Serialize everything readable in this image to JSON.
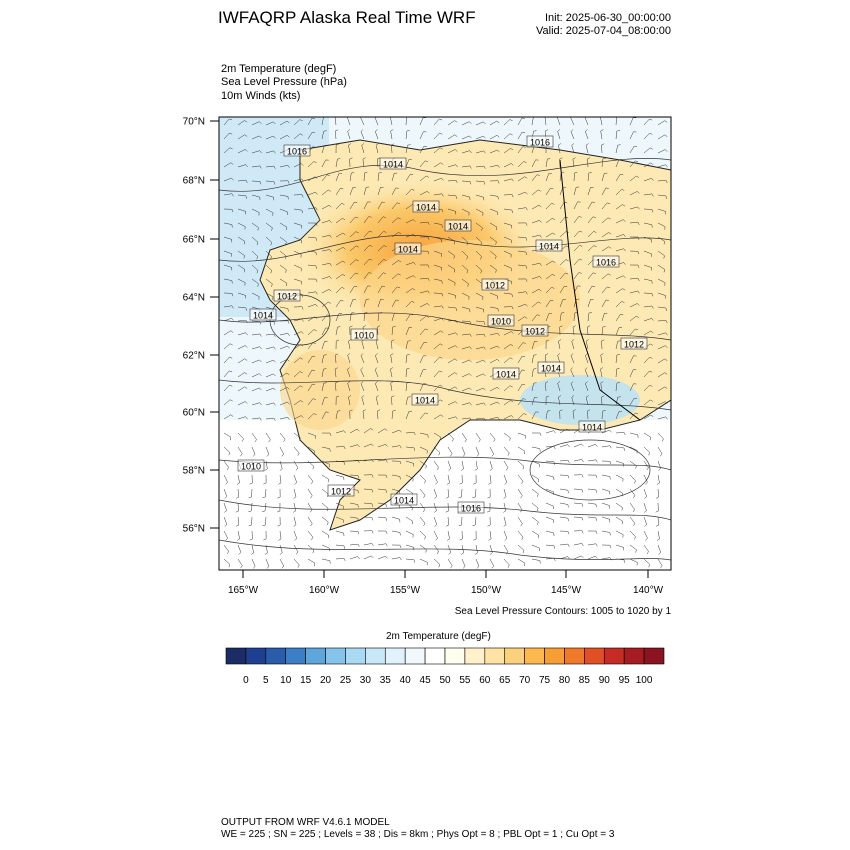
{
  "header": {
    "title": "IWFAQRP Alaska Real Time WRF",
    "init": "Init: 2025-06-30_00:00:00",
    "valid": "Valid: 2025-07-04_08:00:00"
  },
  "fields": [
    "2m Temperature   (degF)",
    "Sea Level Pressure   (hPa)",
    "10m Winds   (kts)"
  ],
  "lat_labels": [
    "70°N",
    "68°N",
    "66°N",
    "64°N",
    "62°N",
    "60°N",
    "58°N",
    "56°N"
  ],
  "lon_labels": [
    "165°W",
    "160°W",
    "155°W",
    "150°W",
    "145°W",
    "140°W"
  ],
  "isobar_labels": [
    "1016",
    "1016",
    "1014",
    "1014",
    "1014",
    "1014",
    "1014",
    "1016",
    "1012",
    "1014",
    "1012",
    "1010",
    "1010",
    "1012",
    "1012",
    "1014",
    "1014",
    "1014",
    "1014",
    "1010",
    "1012",
    "1014",
    "1016"
  ],
  "contour_note": "Sea Level Pressure Contours: 1005 to 1020 by 1",
  "colorbar": {
    "title": "2m Temperature  (degF)",
    "labels": [
      "0",
      "5",
      "10",
      "15",
      "20",
      "25",
      "30",
      "35",
      "40",
      "45",
      "50",
      "55",
      "60",
      "65",
      "70",
      "75",
      "80",
      "85",
      "90",
      "95",
      "100"
    ],
    "colors": [
      "#1c2d66",
      "#1f3f8f",
      "#2b5cab",
      "#3d7fc4",
      "#5fa6dc",
      "#86c4ec",
      "#a9d9f3",
      "#c8e8f8",
      "#e1f2fb",
      "#f2f9fd",
      "#ffffff",
      "#fffdf0",
      "#fff1cc",
      "#fde4a6",
      "#fcd17c",
      "#fbb94e",
      "#f79e35",
      "#ef7a2c",
      "#e14f27",
      "#c72b26",
      "#a71b22",
      "#8a1520"
    ]
  },
  "footer": {
    "line1": "OUTPUT FROM WRF V4.6.1 MODEL",
    "line2": "WE = 225 ; SN = 225 ; Levels = 38 ; Dis = 8km ; Phys Opt = 8 ; PBL Opt = 1 ; Cu Opt = 3"
  }
}
